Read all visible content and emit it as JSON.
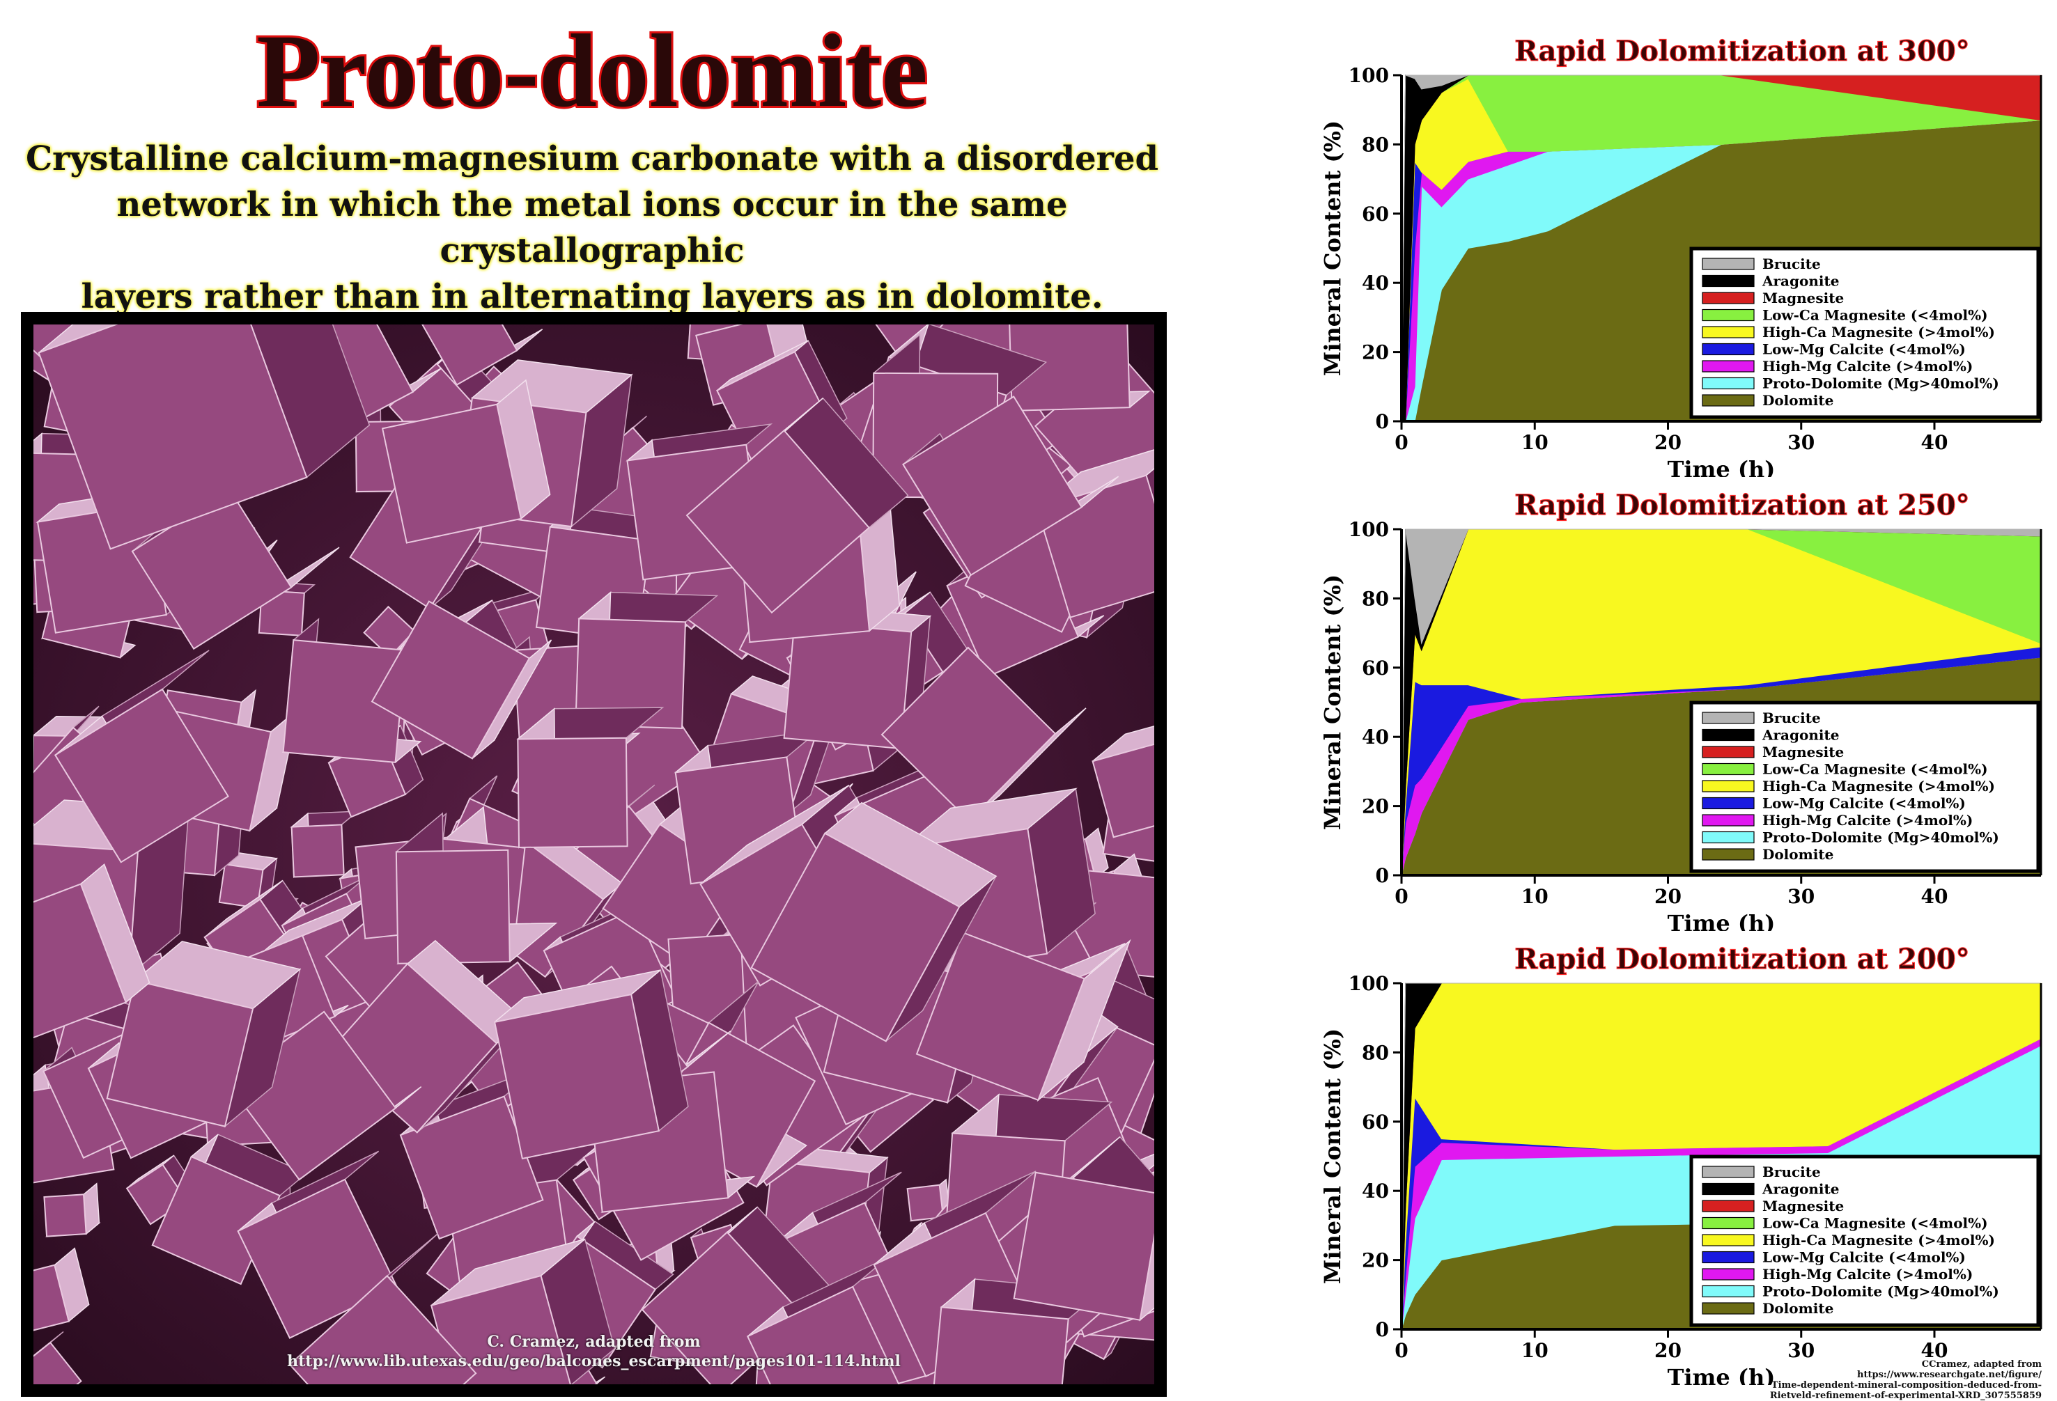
{
  "page": {
    "title": "Proto-dolomite",
    "subtitle_lines": [
      "Crystalline calcium-magnesium carbonate with a disordered",
      "network in which the metal ions occur in the same crystallographic",
      "layers rather than in alternating layers as in dolomite."
    ],
    "photo_credit_lines": [
      "C. Cramez, adapted from",
      "http://www.lib.utexas.edu/geo/balcones_escarpment/pages101-114.html"
    ],
    "bottom_credit_lines": [
      "CCramez, adapted from https://www.researchgate.net/figure/",
      "Time-dependent-mineral-composition-deduced-from-",
      "Rietveld-refinement-of-experimental-XRD_307555859"
    ]
  },
  "colors": {
    "Brucite": "#b4b4b4",
    "Aragonite": "#000000",
    "Magnesite": "#d62020",
    "Low-Ca Magnesite": "#88f040",
    "High-Ca Magnesite": "#f8f820",
    "Low-Mg Calcite": "#1a1ae0",
    "High-Mg Calcite": "#e018f0",
    "Proto-Dolomite": "#80fafa",
    "Dolomite": "#6b6b14"
  },
  "legend_entries": [
    {
      "key": "Brucite",
      "label": "Brucite"
    },
    {
      "key": "Aragonite",
      "label": "Aragonite"
    },
    {
      "key": "Magnesite",
      "label": "Magnesite"
    },
    {
      "key": "Low-Ca Magnesite",
      "label": "Low-Ca Magnesite  (<4mol%)"
    },
    {
      "key": "High-Ca Magnesite",
      "label": "High-Ca Magnesite  (>4mol%)"
    },
    {
      "key": "Low-Mg Calcite",
      "label": "Low-Mg Calcite  (<4mol%)"
    },
    {
      "key": "High-Mg Calcite",
      "label": "High-Mg Calcite  (>4mol%)"
    },
    {
      "key": "Proto-Dolomite",
      "label": "Proto-Dolomite (Mg>40mol%)"
    },
    {
      "key": "Dolomite",
      "label": "Dolomite"
    }
  ],
  "chart_data": [
    {
      "type": "area",
      "title": "Rapid Dolomitization at 300°",
      "xlabel": "Time (h)",
      "ylabel": "Mineral Content (%)",
      "xlim": [
        0,
        48
      ],
      "ylim": [
        0,
        100
      ],
      "xticks": [
        0,
        10,
        20,
        30,
        40
      ],
      "yticks": [
        0,
        20,
        40,
        60,
        80,
        100
      ],
      "legend_position": "bottom-right",
      "x": [
        0,
        0.3,
        1.0,
        1.5,
        3.0,
        5.0,
        8.0,
        11.0,
        24.0,
        48.0
      ],
      "series": [
        {
          "name": "Dolomite",
          "values": [
            0,
            0,
            0,
            10,
            38,
            50,
            52,
            55,
            80,
            87
          ]
        },
        {
          "name": "Proto-Dolomite",
          "values": [
            0,
            0,
            10,
            58,
            24,
            20,
            22,
            23,
            0,
            0
          ]
        },
        {
          "name": "High-Mg Calcite",
          "values": [
            0,
            0,
            40,
            4,
            5,
            5,
            4,
            0,
            0,
            0
          ]
        },
        {
          "name": "Low-Mg Calcite",
          "values": [
            0,
            0,
            25,
            0,
            0,
            0,
            0,
            0,
            0,
            0
          ]
        },
        {
          "name": "High-Ca Magnesite",
          "values": [
            0,
            0,
            5,
            15,
            28,
            24,
            0,
            0,
            0,
            0
          ]
        },
        {
          "name": "Low-Ca Magnesite",
          "values": [
            0,
            0,
            0,
            0,
            0,
            1,
            22,
            22,
            20,
            0
          ]
        },
        {
          "name": "Magnesite",
          "values": [
            0,
            0,
            0,
            0,
            0,
            0,
            0,
            0,
            0,
            13
          ]
        },
        {
          "name": "Aragonite",
          "values": [
            0,
            100,
            19,
            9,
            2,
            0,
            0,
            0,
            0,
            0
          ]
        },
        {
          "name": "Brucite",
          "values": [
            0,
            0,
            1,
            4,
            3,
            0,
            0,
            0,
            0,
            0
          ]
        }
      ]
    },
    {
      "type": "area",
      "title": "Rapid Dolomitization at 250°",
      "xlabel": "Time (h)",
      "ylabel": "Mineral Content (%)",
      "xlim": [
        0,
        48
      ],
      "ylim": [
        0,
        100
      ],
      "xticks": [
        0,
        10,
        20,
        30,
        40
      ],
      "yticks": [
        0,
        20,
        40,
        60,
        80,
        100
      ],
      "legend_position": "bottom-right",
      "x": [
        0,
        0.3,
        1.0,
        1.5,
        5.0,
        9.0,
        26.0,
        48.0
      ],
      "series": [
        {
          "name": "Dolomite",
          "values": [
            0,
            5,
            12,
            18,
            45,
            50,
            54,
            63
          ]
        },
        {
          "name": "Proto-Dolomite",
          "values": [
            0,
            0,
            0,
            0,
            0,
            0,
            0,
            0
          ]
        },
        {
          "name": "High-Mg Calcite",
          "values": [
            0,
            10,
            14,
            10,
            4,
            1,
            0,
            0
          ]
        },
        {
          "name": "Low-Mg Calcite",
          "values": [
            0,
            5,
            30,
            27,
            6,
            0,
            1,
            3
          ]
        },
        {
          "name": "High-Ca Magnesite",
          "values": [
            0,
            5,
            14,
            10,
            45,
            49,
            45,
            1
          ]
        },
        {
          "name": "Low-Ca Magnesite",
          "values": [
            0,
            0,
            0,
            0,
            0,
            0,
            0,
            31
          ]
        },
        {
          "name": "Magnesite",
          "values": [
            0,
            0,
            0,
            0,
            0,
            0,
            0,
            0
          ]
        },
        {
          "name": "Aragonite",
          "values": [
            0,
            75,
            10,
            2,
            0,
            0,
            0,
            0
          ]
        },
        {
          "name": "Brucite",
          "values": [
            0,
            0,
            20,
            33,
            0,
            0,
            0,
            2
          ]
        }
      ]
    },
    {
      "type": "area",
      "title": "Rapid Dolomitization at 200°",
      "xlabel": "Time (h)",
      "ylabel": "Mineral Content (%)",
      "xlim": [
        0,
        48
      ],
      "ylim": [
        0,
        100
      ],
      "xticks": [
        0,
        10,
        20,
        30,
        40
      ],
      "yticks": [
        0,
        20,
        40,
        60,
        80,
        100
      ],
      "legend_position": "bottom-right",
      "x": [
        0,
        0.3,
        1.0,
        3.0,
        16.0,
        32.0,
        48.0
      ],
      "series": [
        {
          "name": "Dolomite",
          "values": [
            0,
            4,
            10,
            20,
            30,
            31,
            38
          ]
        },
        {
          "name": "Proto-Dolomite",
          "values": [
            0,
            6,
            22,
            29,
            20,
            20,
            44
          ]
        },
        {
          "name": "High-Mg Calcite",
          "values": [
            0,
            5,
            15,
            5,
            2,
            2,
            2
          ]
        },
        {
          "name": "Low-Mg Calcite",
          "values": [
            0,
            10,
            20,
            1,
            0,
            0,
            0
          ]
        },
        {
          "name": "High-Ca Magnesite",
          "values": [
            0,
            10,
            20,
            45,
            48,
            47,
            16
          ]
        },
        {
          "name": "Low-Ca Magnesite",
          "values": [
            0,
            0,
            0,
            0,
            0,
            0,
            0
          ]
        },
        {
          "name": "Magnesite",
          "values": [
            0,
            0,
            0,
            0,
            0,
            0,
            0
          ]
        },
        {
          "name": "Aragonite",
          "values": [
            0,
            65,
            13,
            0,
            0,
            0,
            0
          ]
        },
        {
          "name": "Brucite",
          "values": [
            0,
            0,
            0,
            0,
            0,
            0,
            0
          ]
        }
      ]
    }
  ]
}
